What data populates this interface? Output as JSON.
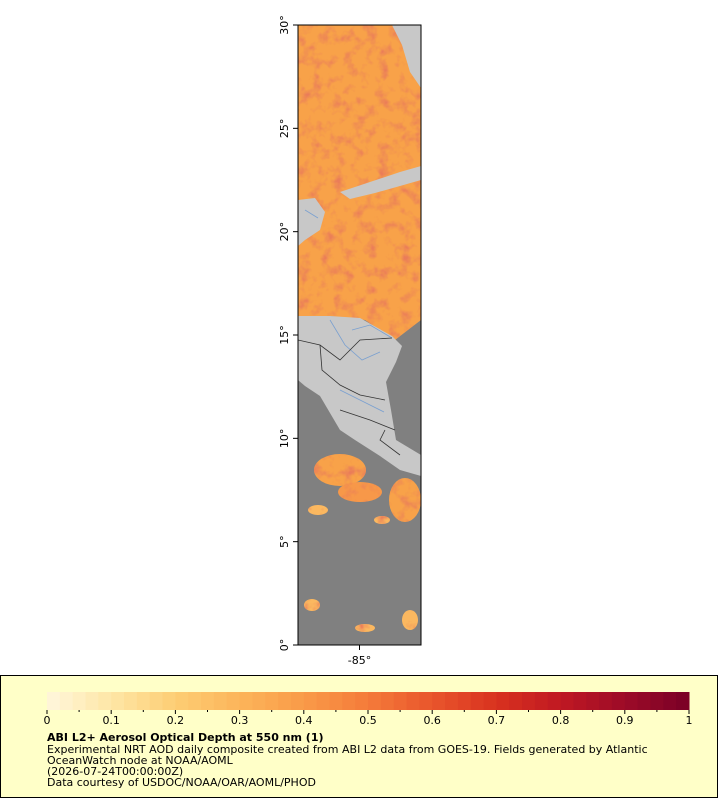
{
  "map": {
    "xlim": [
      -88,
      -82
    ],
    "ylim": [
      0,
      30
    ],
    "xticks": [
      {
        "value": -85,
        "label": "-85°"
      }
    ],
    "yticks": [
      {
        "value": 0,
        "label": "0°"
      },
      {
        "value": 5,
        "label": "5°"
      },
      {
        "value": 10,
        "label": "10°"
      },
      {
        "value": 15,
        "label": "15°"
      },
      {
        "value": 20,
        "label": "20°"
      },
      {
        "value": 25,
        "label": "25°"
      },
      {
        "value": 30,
        "label": "30°"
      }
    ]
  },
  "legend": {
    "colorbar": {
      "lim": [
        0,
        1
      ],
      "ticks": [
        0,
        0.1,
        0.2,
        0.3,
        0.4,
        0.5,
        0.6,
        0.7,
        0.8,
        0.9,
        1
      ],
      "colors": [
        "#fff7dc",
        "#fee6a6",
        "#fdcd74",
        "#fcb55a",
        "#f99a48",
        "#f47b3a",
        "#e9552c",
        "#d8321f",
        "#c01822",
        "#9c0b28",
        "#7a0026"
      ]
    },
    "title": "ABI L2+ Aerosol Optical Depth at 550 nm (1)",
    "lines": [
      "Experimental NRT AOD daily composite created from ABI L2 data from GOES-19. Fields generated by Atlantic",
      "OceanWatch node at NOAA/AOML",
      "(2026-07-24T00:00:00Z)",
      "Data courtesy of USDOC/NOAA/OAR/AOML/PHOD"
    ]
  }
}
